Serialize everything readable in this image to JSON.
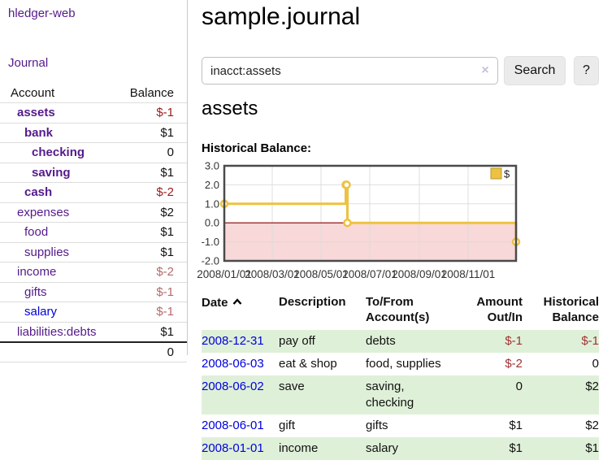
{
  "app": {
    "brand": "hledger-web",
    "nav_journal": "Journal"
  },
  "colors": {
    "link_purple": "#551a8b",
    "link_blue": "#0000dd",
    "negative_strong": "#9b1b1b",
    "negative_soft": "#b36a6a",
    "negative_cell": "#a03333",
    "row_green": "#dff0d8",
    "chart_series": "#edc240",
    "chart_negative_fill": "#f8d8d8",
    "chart_zero_line": "#8b0000"
  },
  "sidebar": {
    "headers": {
      "account": "Account",
      "balance": "Balance"
    },
    "accounts": [
      {
        "name": "assets",
        "indent": 1,
        "bold": true,
        "balance": "$-1",
        "balance_style": "neg-strong",
        "link_color": "purple"
      },
      {
        "name": "bank",
        "indent": 2,
        "bold": true,
        "balance": "$1",
        "balance_style": "pos",
        "link_color": "purple"
      },
      {
        "name": "checking",
        "indent": 3,
        "bold": true,
        "balance": "0",
        "balance_style": "pos",
        "link_color": "purple"
      },
      {
        "name": "saving",
        "indent": 3,
        "bold": true,
        "balance": "$1",
        "balance_style": "pos",
        "link_color": "purple"
      },
      {
        "name": "cash",
        "indent": 2,
        "bold": true,
        "balance": "$-2",
        "balance_style": "neg-strong",
        "link_color": "purple"
      },
      {
        "name": "expenses",
        "indent": 1,
        "bold": false,
        "balance": "$2",
        "balance_style": "pos",
        "link_color": "purple"
      },
      {
        "name": "food",
        "indent": 2,
        "bold": false,
        "balance": "$1",
        "balance_style": "pos",
        "link_color": "purple"
      },
      {
        "name": "supplies",
        "indent": 2,
        "bold": false,
        "balance": "$1",
        "balance_style": "pos",
        "link_color": "purple"
      },
      {
        "name": "income",
        "indent": 1,
        "bold": false,
        "balance": "$-2",
        "balance_style": "neg-soft",
        "link_color": "purple"
      },
      {
        "name": "gifts",
        "indent": 2,
        "bold": false,
        "balance": "$-1",
        "balance_style": "neg-soft",
        "link_color": "purple"
      },
      {
        "name": "salary",
        "indent": 2,
        "bold": false,
        "balance": "$-1",
        "balance_style": "neg-soft",
        "link_color": "blue"
      },
      {
        "name": "liabilities:debts",
        "indent": 1,
        "bold": false,
        "balance": "$1",
        "balance_style": "pos",
        "link_color": "purple"
      }
    ],
    "total": "0"
  },
  "header": {
    "journal_title": "sample.journal"
  },
  "search": {
    "value": "inacct:assets",
    "clear_icon": "×",
    "button_label": "Search",
    "help_label": "?"
  },
  "account_page": {
    "title": "assets",
    "chart_label": "Historical Balance:"
  },
  "chart_data": {
    "type": "line",
    "style": "step-after",
    "title": "Historical Balance",
    "series": [
      {
        "name": "$",
        "color": "#edc240",
        "points": [
          [
            "2008-01-01",
            1
          ],
          [
            "2008-06-01",
            2
          ],
          [
            "2008-06-02",
            2
          ],
          [
            "2008-06-03",
            0
          ],
          [
            "2008-12-31",
            -1
          ]
        ]
      }
    ],
    "xlim": [
      "2008-01-01",
      "2008-12-31"
    ],
    "ylim": [
      -2,
      3
    ],
    "yticks": [
      "3.0",
      "2.0",
      "1.0",
      "0.0",
      "-1.0",
      "-2.0"
    ],
    "xticks": [
      "2008/01/01",
      "2008/03/01",
      "2008/05/01",
      "2008/07/01",
      "2008/09/01",
      "2008/11/01"
    ],
    "legend": "$",
    "legend_position": "top-right",
    "grid": true,
    "negative_region_fill": "#f8d8d8",
    "zero_line_color": "#8b0000"
  },
  "register": {
    "headers": {
      "date": "Date",
      "description": "Description",
      "accounts": "To/From Account(s)",
      "amount": "Amount Out/In",
      "balance": "Historical Balance"
    },
    "rows": [
      {
        "date": "2008-12-31",
        "description": "pay off",
        "accounts": "debts",
        "amount": "$-1",
        "amount_neg": true,
        "balance": "$-1",
        "balance_neg": true
      },
      {
        "date": "2008-06-03",
        "description": "eat & shop",
        "accounts": "food, supplies",
        "amount": "$-2",
        "amount_neg": true,
        "balance": "0",
        "balance_neg": false
      },
      {
        "date": "2008-06-02",
        "description": "save",
        "accounts": "saving, checking",
        "amount": "0",
        "amount_neg": false,
        "balance": "$2",
        "balance_neg": false
      },
      {
        "date": "2008-06-01",
        "description": "gift",
        "accounts": "gifts",
        "amount": "$1",
        "amount_neg": false,
        "balance": "$2",
        "balance_neg": false
      },
      {
        "date": "2008-01-01",
        "description": "income",
        "accounts": "salary",
        "amount": "$1",
        "amount_neg": false,
        "balance": "$1",
        "balance_neg": false
      }
    ]
  }
}
